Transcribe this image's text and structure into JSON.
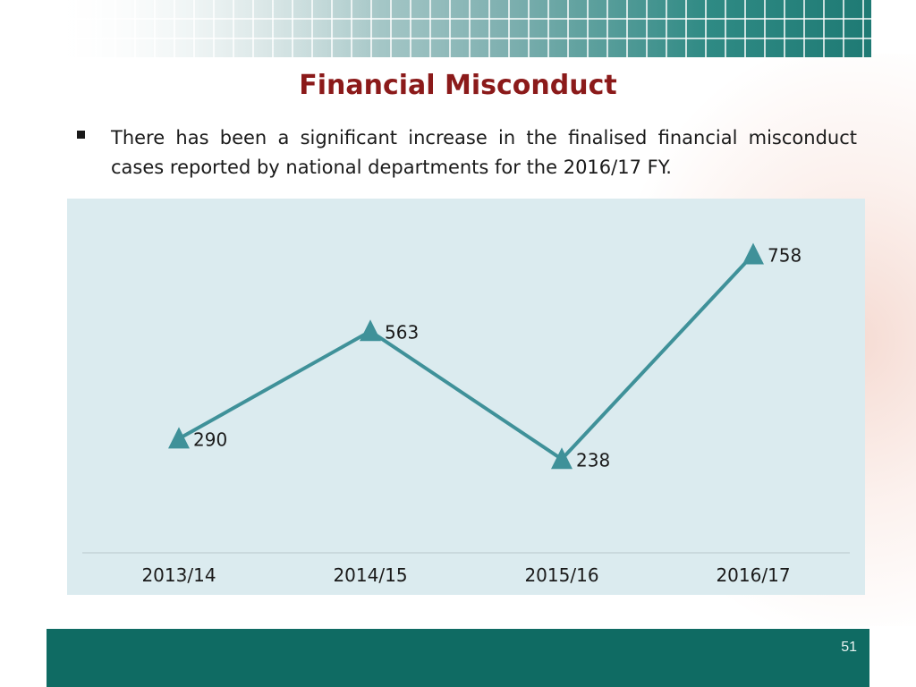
{
  "slide": {
    "title": "Financial Misconduct",
    "bullet": "There has been a significant increase in the finalised financial misconduct cases reported by national departments for the 2016/17 FY.",
    "page_number": "51"
  },
  "colors": {
    "title": "#8b1a1a",
    "series_line": "#3f9199",
    "chart_background": "#dbebef",
    "footer": "#0f6b63"
  },
  "chart_data": {
    "type": "line",
    "title": "",
    "xlabel": "",
    "ylabel": "",
    "categories": [
      "2013/14",
      "2014/15",
      "2015/16",
      "2016/17"
    ],
    "series": [
      {
        "values": [
          290,
          563,
          238,
          758
        ],
        "marker": "triangle"
      }
    ],
    "ylim": [
      0,
      900
    ],
    "grid": false,
    "legend": "none",
    "data_labels": true
  }
}
